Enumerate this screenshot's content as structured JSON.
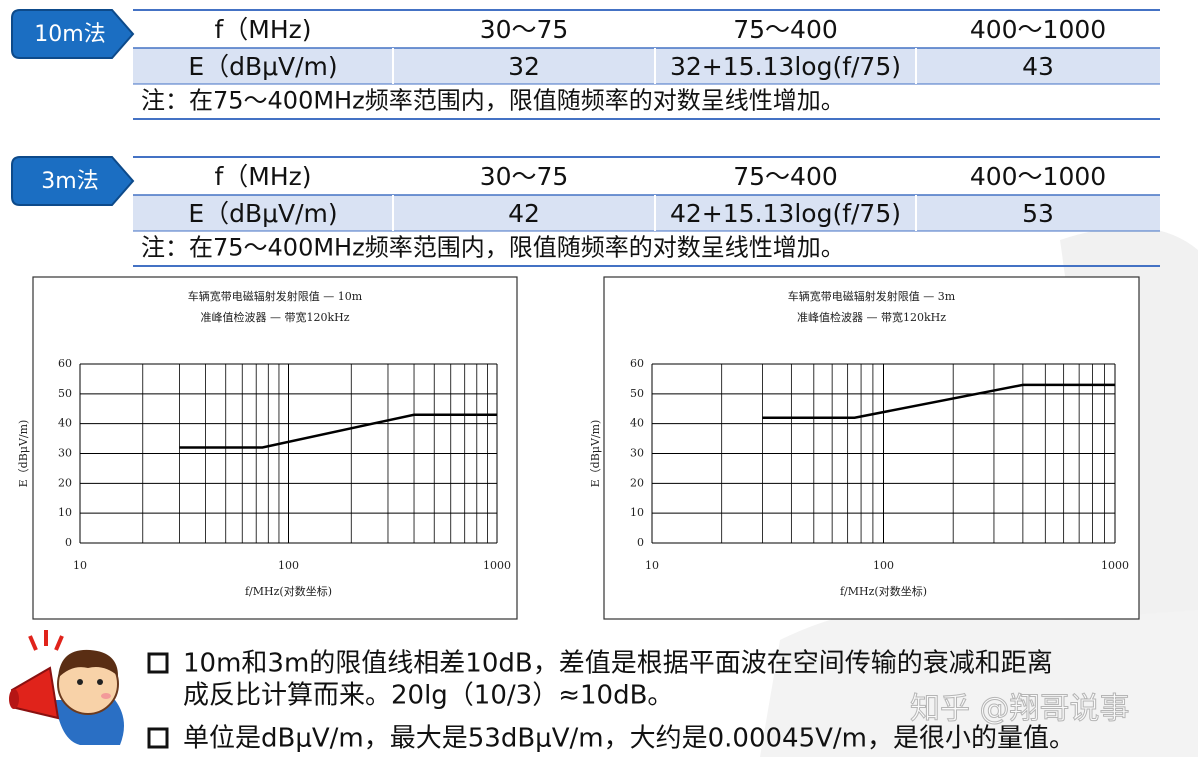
{
  "sections": [
    {
      "badge": "10m法",
      "table": {
        "rows": [
          [
            "f（MHz)",
            "30～75",
            "75～400",
            "400～1000"
          ],
          [
            "E（dBμV/m)",
            "32",
            "32+15.13log(f/75)",
            "43"
          ]
        ]
      },
      "note": "注：在75～400MHz频率范围内，限值随频率的对数呈线性增加。"
    },
    {
      "badge": "3m法",
      "table": {
        "rows": [
          [
            "f（MHz)",
            "30～75",
            "75～400",
            "400～1000"
          ],
          [
            "E（dBμV/m)",
            "42",
            "42+15.13log(f/75)",
            "53"
          ]
        ]
      },
      "note": "注：在75～400MHz频率范围内，限值随频率的对数呈线性增加。"
    }
  ],
  "chart_data": [
    {
      "type": "line",
      "title": [
        "车辆宽带电磁辐射发射限值 — 10m",
        "准峰值检波器 — 带宽120kHz"
      ],
      "x_label": "f/MHz(对数坐标)",
      "y_label": "E（dBμV/m)",
      "x": [
        30,
        75,
        400,
        1000
      ],
      "values": [
        32,
        32,
        43,
        43
      ],
      "color": "#000000",
      "xlim": [
        10,
        1000
      ],
      "xscale": "log",
      "xticks": [
        10,
        100,
        1000
      ],
      "xminorticks": [
        20,
        30,
        40,
        50,
        60,
        70,
        80,
        90,
        200,
        300,
        400,
        500,
        600,
        700,
        800,
        900
      ],
      "ylim": [
        0,
        60
      ],
      "yticks": [
        0,
        10,
        20,
        30,
        40,
        50,
        60
      ],
      "grid": true
    },
    {
      "type": "line",
      "title": [
        "车辆宽带电磁辐射发射限值 — 3m",
        "准峰值检波器 — 带宽120kHz"
      ],
      "x_label": "f/MHz(对数坐标)",
      "y_label": "E（dBμV/m)",
      "x": [
        30,
        75,
        400,
        1000
      ],
      "values": [
        42,
        42,
        53,
        53
      ],
      "color": "#000000",
      "xlim": [
        10,
        1000
      ],
      "xscale": "log",
      "xticks": [
        10,
        100,
        1000
      ],
      "xminorticks": [
        20,
        30,
        40,
        50,
        60,
        70,
        80,
        90,
        200,
        300,
        400,
        500,
        600,
        700,
        800,
        900
      ],
      "ylim": [
        0,
        60
      ],
      "yticks": [
        0,
        10,
        20,
        30,
        40,
        50,
        60
      ],
      "grid": true
    }
  ],
  "bullets": [
    [
      "10m和3m的限值线相差10dB，差值是根据平面波在空间传输的衰减和距离",
      "成反比计算而来。20lg（10/3）≈10dB。"
    ],
    [
      "单位是dBμV/m，最大是53dBμV/m，大约是0.00045V/m，是很小的量值。"
    ]
  ],
  "watermark": "知乎 @翔哥说事"
}
